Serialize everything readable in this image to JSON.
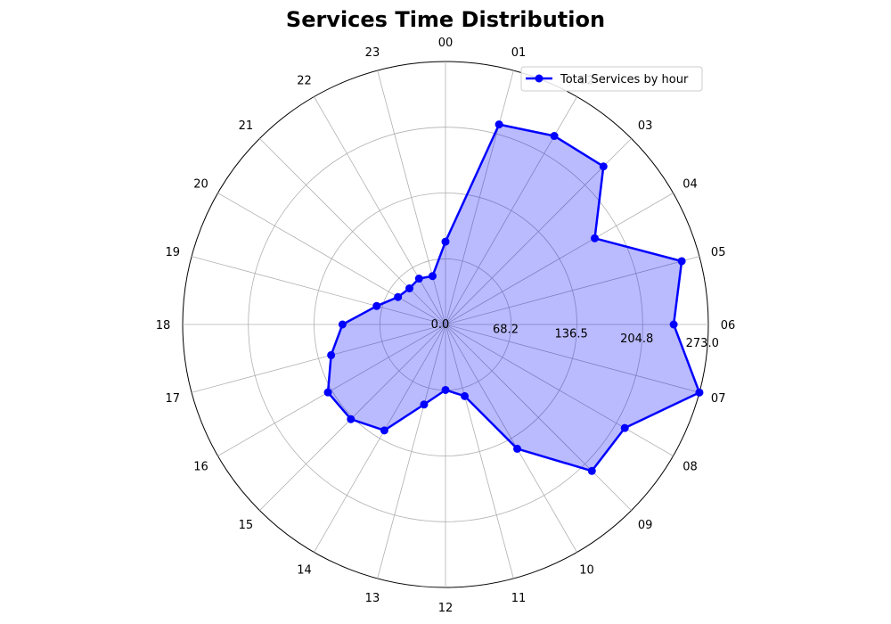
{
  "chart_data": {
    "type": "radar",
    "title": "Services Time Distribution",
    "categories": [
      "00",
      "01",
      "02",
      "03",
      "04",
      "05",
      "06",
      "07",
      "08",
      "09",
      "10",
      "11",
      "12",
      "13",
      "14",
      "15",
      "16",
      "17",
      "18",
      "19",
      "20",
      "21",
      "22",
      "23"
    ],
    "series": [
      {
        "name": "Total Services by hour",
        "values": [
          86,
          215,
          226,
          232,
          179,
          254,
          237,
          273,
          215,
          215,
          149,
          77,
          68,
          86,
          127,
          139,
          141,
          123,
          107,
          74,
          57,
          53,
          55,
          52
        ],
        "color": "#0000ff",
        "fill": "#0000ff",
        "fill_opacity": 0.27
      }
    ],
    "radial_ticks": [
      0.0,
      68.2,
      136.5,
      204.8,
      273.0
    ],
    "radial_tick_labels": [
      "0.0",
      "68.2",
      "136.5",
      "204.8",
      "273.0"
    ],
    "rlim": [
      0,
      273
    ],
    "grid": true,
    "legend_position": "top-right"
  }
}
